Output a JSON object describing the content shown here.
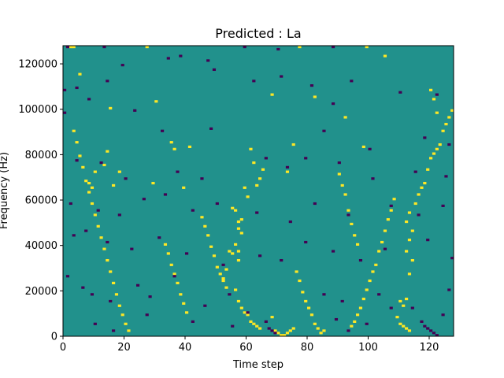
{
  "chart_data": {
    "type": "heatmap",
    "title": "Predicted : La",
    "xlabel": "Time step",
    "ylabel": "Frequency (Hz)",
    "xlim": [
      0,
      128
    ],
    "ylim": [
      0,
      128000
    ],
    "xticks": [
      0,
      20,
      40,
      60,
      80,
      100,
      120
    ],
    "yticks": [
      0,
      20000,
      40000,
      60000,
      80000,
      100000,
      120000
    ],
    "n_time_steps": 128,
    "n_freq_bins": 128,
    "bin_height_hz": 1000,
    "colormap": "viridis",
    "background_level": "mid",
    "colors": {
      "low": "#440154",
      "mid": "#21918c",
      "high": "#fde725"
    },
    "high_cells": [
      [
        2,
        127
      ],
      [
        3,
        127
      ],
      [
        27,
        127
      ],
      [
        77,
        127
      ],
      [
        99,
        127
      ],
      [
        105,
        123
      ],
      [
        5,
        115
      ],
      [
        15,
        100
      ],
      [
        82,
        105
      ],
      [
        68,
        106
      ],
      [
        30,
        103
      ],
      [
        92,
        96
      ],
      [
        41,
        83
      ],
      [
        98,
        83
      ],
      [
        75,
        84
      ],
      [
        61,
        82
      ],
      [
        62,
        76
      ],
      [
        63,
        66
      ],
      [
        64,
        69
      ],
      [
        65,
        73
      ],
      [
        14,
        81
      ],
      [
        13,
        75
      ],
      [
        10,
        72
      ],
      [
        18,
        72
      ],
      [
        73,
        72
      ],
      [
        8,
        67
      ],
      [
        9,
        65
      ],
      [
        16,
        66
      ],
      [
        29,
        67
      ],
      [
        39,
        65
      ],
      [
        59,
        65
      ],
      [
        60,
        61
      ],
      [
        55,
        56
      ],
      [
        56,
        55
      ],
      [
        57,
        50
      ],
      [
        58,
        51
      ],
      [
        57,
        47
      ],
      [
        58,
        45
      ],
      [
        56,
        40
      ],
      [
        57,
        37
      ],
      [
        55,
        36
      ],
      [
        54,
        37
      ],
      [
        57,
        33
      ],
      [
        53,
        29
      ],
      [
        52,
        25
      ],
      [
        56,
        20
      ],
      [
        57,
        15
      ],
      [
        58,
        12
      ],
      [
        59,
        10
      ],
      [
        60,
        9
      ],
      [
        61,
        6
      ],
      [
        62,
        5
      ],
      [
        63,
        4
      ],
      [
        64,
        3
      ],
      [
        68,
        8
      ],
      [
        69,
        2
      ],
      [
        70,
        1
      ],
      [
        71,
        0
      ],
      [
        72,
        0
      ],
      [
        73,
        1
      ],
      [
        74,
        2
      ],
      [
        75,
        3
      ],
      [
        109,
        8
      ],
      [
        110,
        5
      ],
      [
        111,
        4
      ],
      [
        112,
        3
      ],
      [
        113,
        2
      ],
      [
        110,
        15
      ],
      [
        111,
        13
      ],
      [
        112,
        16
      ],
      [
        113,
        27
      ],
      [
        114,
        33
      ],
      [
        112,
        37
      ],
      [
        113,
        42
      ],
      [
        114,
        46
      ],
      [
        112,
        50
      ],
      [
        113,
        54
      ],
      [
        115,
        58
      ],
      [
        116,
        62
      ],
      [
        117,
        65
      ],
      [
        118,
        67
      ],
      [
        119,
        73
      ],
      [
        120,
        78
      ],
      [
        121,
        80
      ],
      [
        122,
        82
      ],
      [
        123,
        84
      ],
      [
        124,
        90
      ],
      [
        125,
        93
      ],
      [
        126,
        96
      ],
      [
        127,
        99
      ],
      [
        108,
        60
      ],
      [
        107,
        55
      ],
      [
        106,
        51
      ],
      [
        105,
        46
      ],
      [
        104,
        41
      ],
      [
        103,
        37
      ],
      [
        102,
        31
      ],
      [
        101,
        28
      ],
      [
        100,
        24
      ],
      [
        99,
        20
      ],
      [
        98,
        16
      ],
      [
        97,
        12
      ],
      [
        96,
        9
      ],
      [
        95,
        6
      ],
      [
        94,
        4
      ],
      [
        120,
        108
      ],
      [
        121,
        104
      ],
      [
        122,
        98
      ],
      [
        35,
        85
      ],
      [
        36,
        82
      ],
      [
        90,
        71
      ],
      [
        91,
        66
      ],
      [
        92,
        62
      ],
      [
        93,
        55
      ],
      [
        94,
        49
      ],
      [
        95,
        44
      ],
      [
        96,
        40
      ],
      [
        3,
        90
      ],
      [
        4,
        85
      ],
      [
        5,
        79
      ],
      [
        6,
        74
      ],
      [
        7,
        68
      ],
      [
        8,
        63
      ],
      [
        9,
        58
      ],
      [
        10,
        53
      ],
      [
        11,
        48
      ],
      [
        12,
        43
      ],
      [
        13,
        38
      ],
      [
        14,
        33
      ],
      [
        15,
        28
      ],
      [
        16,
        23
      ],
      [
        17,
        18
      ],
      [
        18,
        13
      ],
      [
        19,
        9
      ],
      [
        20,
        5
      ],
      [
        21,
        2
      ],
      [
        45,
        52
      ],
      [
        46,
        48
      ],
      [
        47,
        44
      ],
      [
        48,
        39
      ],
      [
        49,
        35
      ],
      [
        50,
        30
      ],
      [
        51,
        27
      ],
      [
        52,
        24
      ],
      [
        53,
        21
      ],
      [
        76,
        28
      ],
      [
        77,
        24
      ],
      [
        78,
        19
      ],
      [
        79,
        15
      ],
      [
        80,
        12
      ],
      [
        81,
        9
      ],
      [
        82,
        5
      ],
      [
        83,
        3
      ],
      [
        84,
        1
      ],
      [
        85,
        2
      ],
      [
        33,
        40
      ],
      [
        34,
        36
      ],
      [
        35,
        31
      ],
      [
        36,
        27
      ],
      [
        37,
        23
      ],
      [
        38,
        18
      ],
      [
        39,
        14
      ],
      [
        40,
        10
      ]
    ],
    "low_cells": [
      [
        1,
        127
      ],
      [
        13,
        127
      ],
      [
        34,
        122
      ],
      [
        38,
        123
      ],
      [
        47,
        121
      ],
      [
        59,
        127
      ],
      [
        70,
        126
      ],
      [
        88,
        127
      ],
      [
        0,
        108
      ],
      [
        4,
        109
      ],
      [
        14,
        112
      ],
      [
        19,
        119
      ],
      [
        49,
        117
      ],
      [
        62,
        112
      ],
      [
        71,
        114
      ],
      [
        81,
        110
      ],
      [
        88,
        102
      ],
      [
        94,
        112
      ],
      [
        110,
        107
      ],
      [
        122,
        106
      ],
      [
        0,
        98
      ],
      [
        8,
        104
      ],
      [
        23,
        99
      ],
      [
        32,
        90
      ],
      [
        48,
        91
      ],
      [
        85,
        90
      ],
      [
        100,
        82
      ],
      [
        118,
        87
      ],
      [
        126,
        84
      ],
      [
        4,
        77
      ],
      [
        12,
        76
      ],
      [
        20,
        69
      ],
      [
        37,
        72
      ],
      [
        45,
        69
      ],
      [
        66,
        78
      ],
      [
        73,
        74
      ],
      [
        79,
        78
      ],
      [
        90,
        76
      ],
      [
        101,
        69
      ],
      [
        115,
        72
      ],
      [
        125,
        70
      ],
      [
        2,
        58
      ],
      [
        11,
        55
      ],
      [
        18,
        53
      ],
      [
        26,
        60
      ],
      [
        33,
        62
      ],
      [
        42,
        55
      ],
      [
        50,
        58
      ],
      [
        63,
        54
      ],
      [
        74,
        50
      ],
      [
        82,
        58
      ],
      [
        93,
        53
      ],
      [
        107,
        57
      ],
      [
        116,
        53
      ],
      [
        124,
        57
      ],
      [
        3,
        44
      ],
      [
        7,
        46
      ],
      [
        14,
        41
      ],
      [
        22,
        38
      ],
      [
        31,
        43
      ],
      [
        40,
        36
      ],
      [
        52,
        31
      ],
      [
        64,
        35
      ],
      [
        71,
        33
      ],
      [
        79,
        41
      ],
      [
        88,
        37
      ],
      [
        97,
        33
      ],
      [
        105,
        38
      ],
      [
        119,
        42
      ],
      [
        127,
        34
      ],
      [
        1,
        26
      ],
      [
        6,
        21
      ],
      [
        9,
        18
      ],
      [
        15,
        15
      ],
      [
        24,
        22
      ],
      [
        28,
        17
      ],
      [
        36,
        26
      ],
      [
        46,
        13
      ],
      [
        54,
        18
      ],
      [
        60,
        10
      ],
      [
        66,
        6
      ],
      [
        67,
        3
      ],
      [
        68,
        2
      ],
      [
        69,
        1
      ],
      [
        85,
        18
      ],
      [
        91,
        15
      ],
      [
        103,
        18
      ],
      [
        114,
        12
      ],
      [
        117,
        6
      ],
      [
        118,
        4
      ],
      [
        119,
        3
      ],
      [
        120,
        2
      ],
      [
        121,
        1
      ],
      [
        122,
        0
      ],
      [
        124,
        9
      ],
      [
        126,
        20
      ],
      [
        10,
        5
      ],
      [
        16,
        2
      ],
      [
        27,
        9
      ],
      [
        42,
        6
      ],
      [
        55,
        4
      ],
      [
        89,
        7
      ],
      [
        93,
        2
      ],
      [
        99,
        5
      ],
      [
        107,
        12
      ]
    ]
  }
}
